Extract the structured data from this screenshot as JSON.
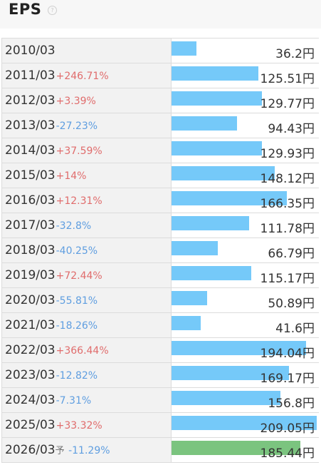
{
  "header": {
    "title": "EPS",
    "help_icon": "?"
  },
  "unit": "円",
  "colors": {
    "actual_bar": "#75c9f9",
    "forecast_bar": "#7bc47f",
    "up": "#e06c6c",
    "down": "#5f9ee0"
  },
  "chart_data": {
    "type": "bar",
    "orientation": "horizontal",
    "title": "EPS",
    "categories": [
      "2010/03",
      "2011/03",
      "2012/03",
      "2013/03",
      "2014/03",
      "2015/03",
      "2016/03",
      "2017/03",
      "2018/03",
      "2019/03",
      "2020/03",
      "2021/03",
      "2022/03",
      "2023/03",
      "2024/03",
      "2025/03",
      "2026/03"
    ],
    "values": [
      36.2,
      125.51,
      129.77,
      94.43,
      129.93,
      148.12,
      166.35,
      111.78,
      66.79,
      115.17,
      50.89,
      41.6,
      194.04,
      169.17,
      156.8,
      209.05,
      185.44
    ],
    "value_labels": [
      "36.2",
      "125.51",
      "129.77",
      "94.43",
      "129.93",
      "148.12",
      "166.35",
      "111.78",
      "66.79",
      "115.17",
      "50.89",
      "41.6",
      "194.04",
      "169.17",
      "156.8",
      "209.05",
      "185.44"
    ],
    "changes": [
      "",
      "+246.71%",
      "+3.39%",
      "-27.23%",
      "+37.59%",
      "+14%",
      "+12.31%",
      "-32.8%",
      "-40.25%",
      "+72.44%",
      "-55.81%",
      "-18.26%",
      "+366.44%",
      "-12.82%",
      "-7.31%",
      "+33.32%",
      "-11.29%"
    ],
    "forecast": [
      false,
      false,
      false,
      false,
      false,
      false,
      false,
      false,
      false,
      false,
      false,
      false,
      false,
      false,
      false,
      false,
      true
    ],
    "forecast_mark": "予",
    "xlim": [
      0,
      209.05
    ]
  }
}
